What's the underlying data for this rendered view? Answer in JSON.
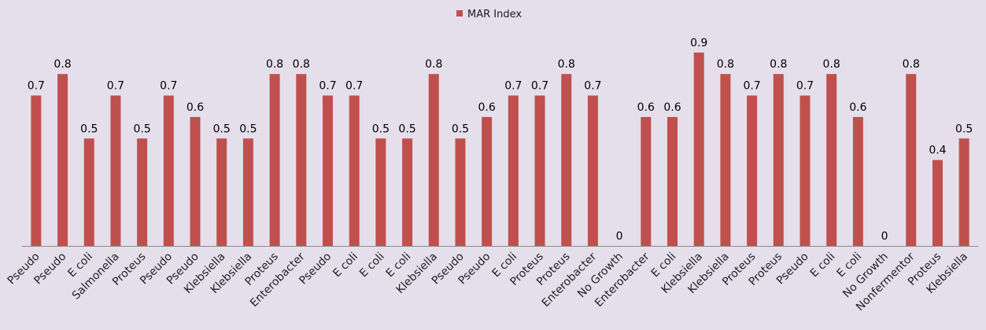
{
  "chart_data": {
    "type": "bar",
    "categories": [
      "Pseudo",
      "Pseudo",
      "E coli",
      "Salmonella",
      "Proteus",
      "Pseudo",
      "Pseudo",
      "Klebsiella",
      "Klebsiella",
      "Proteus",
      "Enterobacter",
      "Pseudo",
      "E coli",
      "E coli",
      "E coli",
      "Klebsiella",
      "Pseudo",
      "Pseudo",
      "E coli",
      "Proteus",
      "Proteus",
      "Enterobacter",
      "No Growth",
      "Enterobacter",
      "E coli",
      "Klebsiella",
      "Klebsiella",
      "Proteus",
      "Proteus",
      "Pseudo",
      "E coli",
      "E coli",
      "No Growth",
      "Nonfermentor",
      "Proteus",
      "Klebsiella"
    ],
    "series": [
      {
        "name": "MAR Index",
        "values": [
          0.7,
          0.8,
          0.5,
          0.7,
          0.5,
          0.7,
          0.6,
          0.5,
          0.5,
          0.8,
          0.8,
          0.7,
          0.7,
          0.5,
          0.5,
          0.8,
          0.5,
          0.6,
          0.7,
          0.7,
          0.8,
          0.7,
          0,
          0.6,
          0.6,
          0.9,
          0.8,
          0.7,
          0.8,
          0.7,
          0.8,
          0.6,
          0,
          0.8,
          0.4,
          0.5
        ]
      }
    ],
    "ylim": [
      0,
      1
    ],
    "grid": false,
    "data_labels": true,
    "legend": {
      "position": "top-center"
    },
    "x_label_rotation": "diagonal"
  },
  "colors": {
    "background": "#e5dfec",
    "bar": "#c0504d",
    "axis": "#8c8c8c"
  }
}
